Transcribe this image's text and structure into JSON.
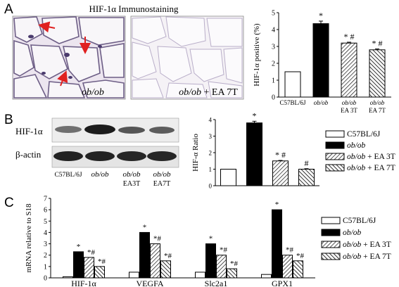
{
  "panel_labels": {
    "a": "A",
    "b": "B",
    "c": "C"
  },
  "panel_a": {
    "title": "HIF-1α Immunostaining",
    "image_left_label": "ob/ob",
    "image_right_label_italic": "ob/ob",
    "image_right_label_rest": " + EA 7T",
    "arrow_color": "#e02020"
  },
  "panel_b": {
    "protein_label": "HIF-1α",
    "actin_label": "β-actin",
    "lane_labels": [
      {
        "line1": "C57BL/6J",
        "line2": "",
        "italic": false
      },
      {
        "line1": "ob/ob",
        "line2": "",
        "italic": true
      },
      {
        "line1": "ob/ob",
        "line2": "EA3T",
        "italic": true
      },
      {
        "line1": "ob/ob",
        "line2": "EA7T",
        "italic": true
      }
    ]
  },
  "legend": {
    "entries": [
      {
        "text": "C57BL/6J",
        "italic_part": "",
        "fill": "white"
      },
      {
        "text": "",
        "italic_part": "ob/ob",
        "fill": "black"
      },
      {
        "text": " + EA 3T",
        "italic_part": "ob/ob",
        "fill": "hatch"
      },
      {
        "text": " + EA 7T",
        "italic_part": "ob/ob",
        "fill": "hatch2"
      }
    ]
  },
  "chart_data": [
    {
      "type": "bar",
      "ylabel": "HIF-1α positive (%)",
      "ylim": [
        0,
        5
      ],
      "yticks": [
        0,
        1,
        2,
        3,
        4,
        5
      ],
      "categories": [
        "C57BL/6J",
        "ob/ob",
        "ob/ob EA 3T",
        "ob/ob EA 7T"
      ],
      "category_lines": [
        [
          "C57BL/6J"
        ],
        [
          "ob/ob"
        ],
        [
          "ob/ob",
          "EA 3T"
        ],
        [
          "ob/ob",
          "EA 7T"
        ]
      ],
      "values": [
        1.5,
        4.35,
        3.2,
        2.8
      ],
      "errors": [
        0,
        0.15,
        0.05,
        0.05
      ],
      "annotations": [
        "",
        "*",
        "* #",
        "* #"
      ]
    },
    {
      "type": "bar",
      "ylabel": "HIF-α Ratio",
      "ylim": [
        0,
        4
      ],
      "yticks": [
        0,
        1,
        2,
        3,
        4
      ],
      "categories": [
        "C57BL/6J",
        "ob/ob",
        "ob/ob + EA 3T",
        "ob/ob + EA 7T"
      ],
      "values": [
        1.0,
        3.8,
        1.5,
        1.0
      ],
      "errors": [
        0,
        0.1,
        0.03,
        0.03
      ],
      "annotations": [
        "",
        "*",
        "* #",
        "#"
      ]
    },
    {
      "type": "bar",
      "ylabel": "mRNA relative to S18",
      "ylim": [
        0,
        7
      ],
      "yticks": [
        0,
        1,
        2,
        3,
        4,
        5,
        6,
        7
      ],
      "categories": [
        "HIF-1α",
        "VEGFA",
        "Slc2a1",
        "GPX1"
      ],
      "series": [
        {
          "name": "C57BL/6J",
          "values": [
            0.1,
            0.5,
            0.5,
            0.3
          ],
          "annotations": [
            "",
            "",
            "",
            ""
          ]
        },
        {
          "name": "ob/ob",
          "values": [
            2.3,
            4.0,
            3.0,
            6.0
          ],
          "annotations": [
            "*",
            "*",
            "*",
            "*"
          ]
        },
        {
          "name": "ob/ob + EA 3T",
          "values": [
            1.8,
            3.0,
            2.0,
            2.0
          ],
          "annotations": [
            "*#",
            "*#",
            "*#",
            "*#"
          ]
        },
        {
          "name": "ob/ob + EA 7T",
          "values": [
            1.0,
            1.5,
            0.8,
            1.5
          ],
          "annotations": [
            "*#",
            "*#",
            "*#",
            "*#"
          ]
        }
      ]
    }
  ]
}
